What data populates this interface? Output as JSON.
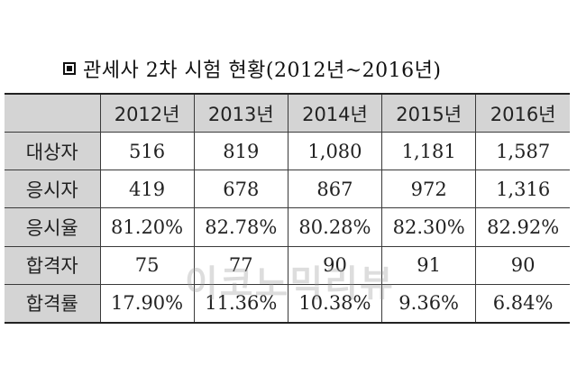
{
  "title": "관세사 2차 시험 현황(2012년~2016년)",
  "table": {
    "headers": [
      "2012년",
      "2013년",
      "2014년",
      "2015년",
      "2016년"
    ],
    "rows": [
      {
        "label": "대상자",
        "values": [
          "516",
          "819",
          "1,080",
          "1,181",
          "1,587"
        ]
      },
      {
        "label": "응시자",
        "values": [
          "419",
          "678",
          "867",
          "972",
          "1,316"
        ]
      },
      {
        "label": "응시율",
        "values": [
          "81.20%",
          "82.78%",
          "80.28%",
          "82.30%",
          "82.92%"
        ]
      },
      {
        "label": "합격자",
        "values": [
          "75",
          "77",
          "90",
          "91",
          "90"
        ]
      },
      {
        "label": "합격률",
        "values": [
          "17.90%",
          "11.36%",
          "10.38%",
          "9.36%",
          "6.84%"
        ]
      }
    ]
  },
  "watermark": "이코노믹리뷰"
}
